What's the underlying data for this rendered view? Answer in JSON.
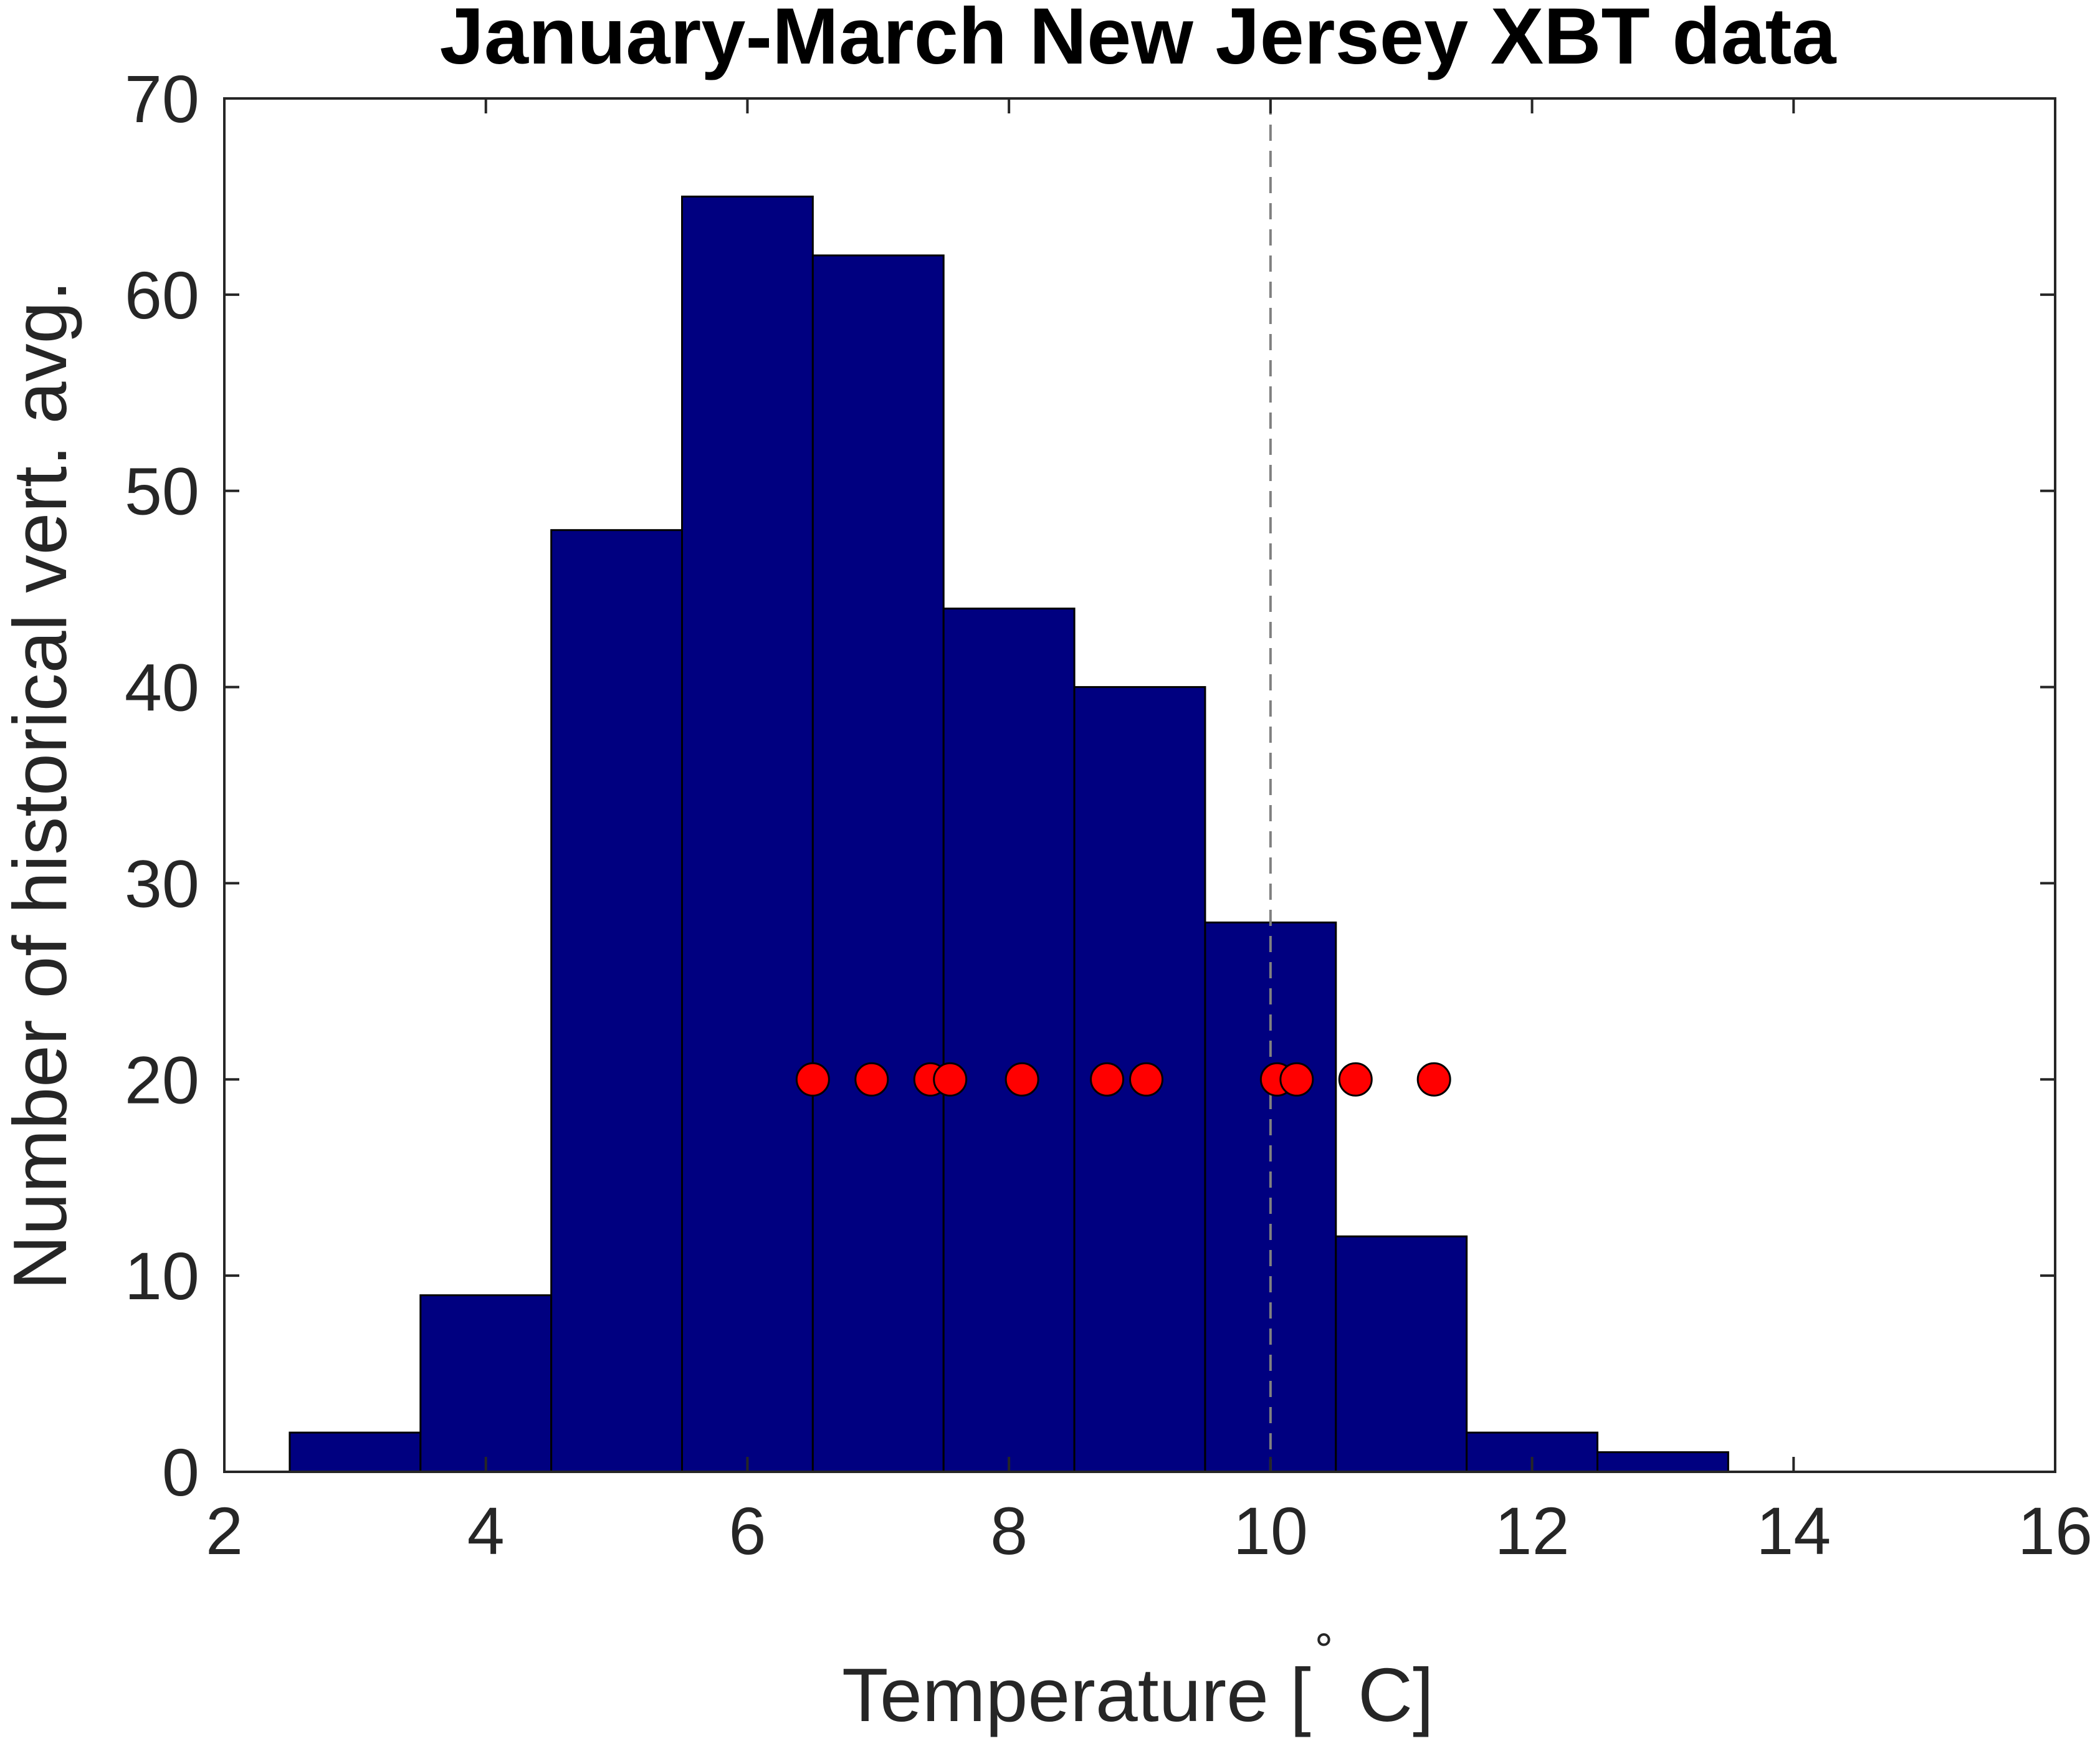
{
  "chart_data": {
    "type": "bar",
    "title": "January-March New Jersey XBT data",
    "xlabel": "Temperature [ ° C]",
    "xlabel_parts": {
      "before": "Temperature [",
      "degree": "∘",
      "after": " C]"
    },
    "ylabel": "Number of historical vert. avg.",
    "xlim": [
      2,
      16
    ],
    "ylim": [
      0,
      70
    ],
    "xticks": [
      "2",
      "4",
      "6",
      "8",
      "10",
      "12",
      "14",
      "16"
    ],
    "yticks": [
      "0",
      "10",
      "20",
      "30",
      "40",
      "50",
      "60",
      "70"
    ],
    "bin_width": 1,
    "bin_centers": [
      3,
      4,
      5,
      6,
      7,
      8,
      9,
      10,
      11,
      12,
      13
    ],
    "values": [
      2,
      9,
      48,
      65,
      62,
      44,
      40,
      28,
      12,
      2,
      1
    ],
    "bar_color": "#000080",
    "reference_line": {
      "x": 10,
      "style": "dashed",
      "color": "#808080"
    },
    "markers": {
      "y": 20,
      "color": "#ff0000",
      "x": [
        6.5,
        6.95,
        7.4,
        7.55,
        8.1,
        8.75,
        9.05,
        10.05,
        10.2,
        10.65,
        11.25
      ]
    },
    "grid": false,
    "legend": "none"
  }
}
